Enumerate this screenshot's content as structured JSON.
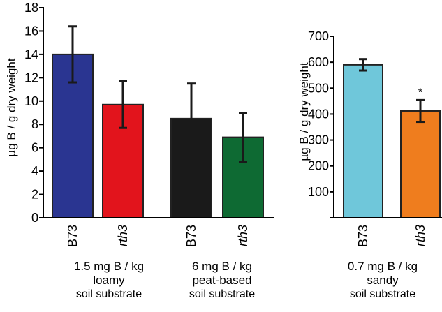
{
  "chart_data": [
    {
      "type": "bar",
      "ylabel": "µg B / g dry weight",
      "ylim": [
        0,
        18
      ],
      "yticks": [
        0,
        2,
        4,
        6,
        8,
        10,
        12,
        14,
        16,
        18
      ],
      "grid": false,
      "groups": [
        {
          "line1": "1.5 mg B / kg",
          "line2": "loamy",
          "line3": "soil substrate"
        },
        {
          "line1": "6 mg B / kg",
          "line2": "peat-based",
          "line3": "soil substrate"
        }
      ],
      "bars": [
        {
          "category": "B73",
          "italic": false,
          "group": 0,
          "value": 14.0,
          "error": 2.4,
          "color": "#2a3591",
          "marker": ""
        },
        {
          "category": "rth3",
          "italic": true,
          "group": 0,
          "value": 9.7,
          "error": 2.0,
          "color": "#e2141c",
          "marker": ""
        },
        {
          "category": "B73",
          "italic": false,
          "group": 1,
          "value": 8.5,
          "error": 3.0,
          "color": "#1a1a1a",
          "marker": ""
        },
        {
          "category": "rth3",
          "italic": true,
          "group": 1,
          "value": 6.9,
          "error": 2.1,
          "color": "#0e6a33",
          "marker": ""
        }
      ]
    },
    {
      "type": "bar",
      "ylabel": "µg B / g dry weight",
      "ylim": [
        0,
        700
      ],
      "yticks": [
        100,
        200,
        300,
        400,
        500,
        600,
        700
      ],
      "grid": false,
      "groups": [
        {
          "line1": "0.7 mg B / kg",
          "line2": "sandy",
          "line3": "soil substrate"
        }
      ],
      "bars": [
        {
          "category": "B73",
          "italic": false,
          "group": 0,
          "value": 590,
          "error": 22,
          "color": "#6fc7da",
          "marker": ""
        },
        {
          "category": "rth3",
          "italic": true,
          "group": 0,
          "value": 412,
          "error": 42,
          "color": "#ef7d1e",
          "marker": "*"
        }
      ]
    }
  ]
}
